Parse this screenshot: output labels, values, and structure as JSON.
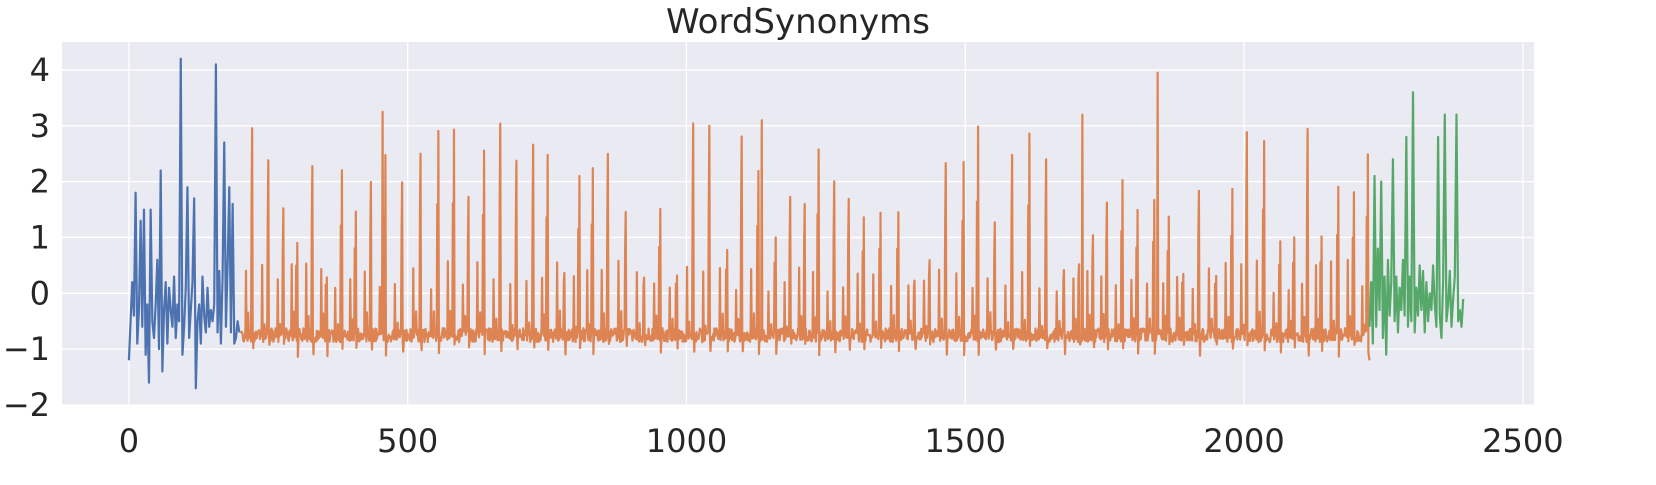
{
  "chart_data": {
    "type": "line",
    "title": "WordSynonyms",
    "xlabel": "",
    "ylabel": "",
    "xlim": [
      -120,
      2520
    ],
    "ylim": [
      -2,
      4.5
    ],
    "xticks": [
      0,
      500,
      1000,
      1500,
      2000,
      2500
    ],
    "xtick_labels": [
      "0",
      "500",
      "1000",
      "1500",
      "2000",
      "2500"
    ],
    "yticks": [
      -2,
      -1,
      0,
      1,
      2,
      3,
      4
    ],
    "ytick_labels": [
      "−2",
      "−1",
      "0",
      "1",
      "2",
      "3",
      "4"
    ],
    "grid": true,
    "legend": false,
    "background": "#eaeaf2",
    "grid_color": "#ffffff",
    "series": [
      {
        "color": "#4c72b0",
        "x": [
          0,
          3,
          6,
          9,
          12,
          15,
          18,
          21,
          24,
          27,
          30,
          33,
          36,
          39,
          42,
          45,
          48,
          51,
          54,
          57,
          60,
          63,
          66,
          69,
          72,
          75,
          78,
          81,
          84,
          87,
          90,
          93,
          96,
          99,
          102,
          105,
          108,
          111,
          114,
          117,
          120,
          123,
          126,
          129,
          132,
          135,
          138,
          141,
          144,
          147,
          150,
          153,
          156,
          159,
          162,
          165,
          168,
          171,
          174,
          177,
          180,
          183,
          186,
          189,
          192,
          195,
          198
        ],
        "y": [
          -1.2,
          -0.5,
          0.2,
          -0.4,
          1.8,
          -0.9,
          -0.3,
          1.3,
          -0.6,
          1.5,
          -1.1,
          -0.2,
          -1.6,
          1.5,
          -0.5,
          -0.8,
          -0.2,
          0.6,
          -1.0,
          2.2,
          -1.4,
          -0.3,
          0.2,
          -0.9,
          0.1,
          -0.3,
          -0.6,
          0.3,
          -0.8,
          -0.2,
          -0.5,
          4.2,
          -1.1,
          -0.6,
          0.1,
          1.9,
          -0.8,
          -0.3,
          0.2,
          1.7,
          -1.7,
          -0.5,
          -0.2,
          -0.9,
          0.3,
          -0.4,
          -0.7,
          0.1,
          -0.6,
          -0.3,
          -0.5,
          -0.2,
          4.1,
          -0.7,
          0.4,
          -0.9,
          0.3,
          2.7,
          -0.6,
          0.5,
          1.9,
          -0.7,
          1.6,
          -0.9,
          -0.8,
          -0.5,
          -0.7
        ]
      },
      {
        "color": "#dd8452",
        "x": [
          200,
          2225
        ],
        "y": [
          -0.7,
          -1.2
        ],
        "generated": true
      },
      {
        "color": "#55a868",
        "x": [
          2225,
          2228,
          2231,
          2234,
          2237,
          2240,
          2243,
          2246,
          2249,
          2252,
          2255,
          2258,
          2261,
          2264,
          2267,
          2270,
          2273,
          2276,
          2279,
          2282,
          2285,
          2288,
          2291,
          2294,
          2297,
          2300,
          2303,
          2306,
          2309,
          2312,
          2315,
          2318,
          2321,
          2324,
          2327,
          2330,
          2333,
          2336,
          2339,
          2342,
          2345,
          2348,
          2351,
          2354,
          2357,
          2360,
          2363,
          2366,
          2369,
          2372,
          2375,
          2378,
          2381,
          2384,
          2387,
          2390,
          2393
        ],
        "y": [
          -0.6,
          0.2,
          -0.9,
          2.1,
          -0.6,
          0.8,
          -0.3,
          2.0,
          -0.8,
          0.3,
          -1.1,
          0.6,
          -0.4,
          0.2,
          2.4,
          -0.5,
          0.3,
          -0.7,
          0.1,
          -0.3,
          0.6,
          -0.4,
          2.8,
          -0.6,
          0.3,
          -0.5,
          3.6,
          -0.7,
          0.1,
          -0.4,
          0.5,
          -0.3,
          0.4,
          -0.7,
          0.2,
          -0.5,
          0.0,
          -0.3,
          0.5,
          -0.2,
          -0.6,
          2.8,
          -0.4,
          -0.8,
          0.2,
          3.2,
          -0.5,
          -0.2,
          0.4,
          -0.6,
          -0.1,
          0.3,
          3.2,
          -0.5,
          -0.3,
          -0.6,
          -0.1
        ]
      }
    ]
  }
}
